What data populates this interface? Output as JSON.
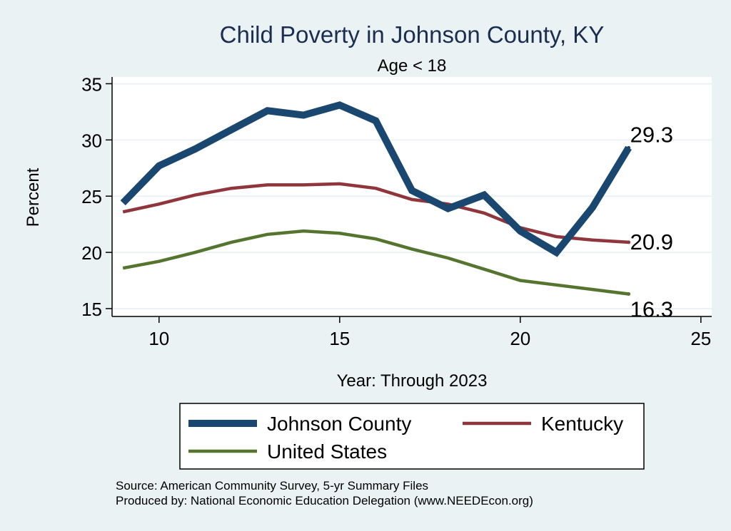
{
  "chart_data": {
    "type": "line",
    "title": "Child Poverty in Johnson County, KY",
    "subtitle": "Age < 18",
    "xlabel": "Year: Through 2023",
    "ylabel": "Percent",
    "xlim": [
      8.7,
      25.3
    ],
    "ylim": [
      14.3,
      35.6
    ],
    "xticks": [
      10,
      15,
      20,
      25
    ],
    "yticks": [
      15,
      20,
      25,
      30,
      35
    ],
    "grid": true,
    "legend_position": "bottom",
    "x": [
      9,
      10,
      11,
      12,
      13,
      14,
      15,
      16,
      17,
      18,
      19,
      20,
      21,
      22,
      23
    ],
    "series": [
      {
        "name": "Johnson County",
        "color": "#1a476f",
        "values": [
          24.4,
          27.7,
          29.2,
          30.9,
          32.6,
          32.2,
          33.1,
          31.7,
          25.5,
          23.9,
          25.1,
          21.9,
          20.0,
          24.0,
          29.3
        ],
        "end_label": "29.3"
      },
      {
        "name": "Kentucky",
        "color": "#90353b",
        "values": [
          23.6,
          24.3,
          25.1,
          25.7,
          26.0,
          26.0,
          26.1,
          25.7,
          24.7,
          24.3,
          23.5,
          22.2,
          21.4,
          21.1,
          20.9
        ],
        "end_label": "20.9"
      },
      {
        "name": "United States",
        "color": "#55752f",
        "values": [
          18.6,
          19.2,
          20.0,
          20.9,
          21.6,
          21.9,
          21.7,
          21.2,
          20.3,
          19.5,
          18.5,
          17.5,
          17.1,
          16.7,
          16.3
        ],
        "end_label": "16.3"
      }
    ],
    "notes": [
      "Source: American Community Survey, 5-yr Summary Files",
      "Produced by: National Economic Education Delegation (www.NEEDEcon.org)"
    ]
  }
}
